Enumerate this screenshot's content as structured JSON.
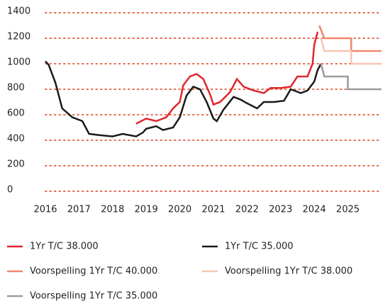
{
  "chart_data": {
    "type": "line",
    "xlim": [
      2016,
      2026
    ],
    "xticks": [
      2016,
      2017,
      2018,
      2019,
      2020,
      2021,
      2022,
      2023,
      2024,
      2025
    ],
    "ylim": [
      0,
      1400
    ],
    "yticks": [
      0,
      200,
      400,
      600,
      800,
      1000,
      1200,
      1400
    ],
    "grid": true,
    "grid_color": "#e8664a",
    "legend": "bottom",
    "series": [
      {
        "name": "1Yr T/C 38.000",
        "color": "#e1262b",
        "x": [
          2018.7,
          2019.0,
          2019.3,
          2019.6,
          2019.8,
          2020.0,
          2020.1,
          2020.3,
          2020.5,
          2020.7,
          2020.9,
          2021.0,
          2021.2,
          2021.5,
          2021.7,
          2021.9,
          2022.2,
          2022.5,
          2022.7,
          2023.0,
          2023.3,
          2023.5,
          2023.8,
          2023.95,
          2024.0,
          2024.1
        ],
        "values": [
          530,
          570,
          550,
          580,
          650,
          700,
          830,
          900,
          920,
          880,
          760,
          680,
          700,
          780,
          880,
          820,
          790,
          770,
          810,
          810,
          820,
          900,
          900,
          1000,
          1150,
          1250
        ]
      },
      {
        "name": "1Yr T/C 35.000",
        "color": "#1a1a1a",
        "x": [
          2016.0,
          2016.1,
          2016.3,
          2016.5,
          2016.8,
          2017.1,
          2017.3,
          2017.6,
          2018.0,
          2018.3,
          2018.7,
          2018.9,
          2019.0,
          2019.3,
          2019.5,
          2019.8,
          2020.0,
          2020.2,
          2020.4,
          2020.6,
          2020.8,
          2021.0,
          2021.1,
          2021.3,
          2021.6,
          2021.8,
          2022.0,
          2022.3,
          2022.5,
          2022.8,
          2023.1,
          2023.3,
          2023.6,
          2023.8,
          2024.0,
          2024.1,
          2024.2
        ],
        "values": [
          1020,
          990,
          850,
          650,
          580,
          550,
          450,
          440,
          430,
          450,
          430,
          460,
          490,
          510,
          480,
          500,
          580,
          750,
          820,
          800,
          700,
          570,
          550,
          640,
          740,
          720,
          690,
          650,
          700,
          700,
          710,
          800,
          770,
          790,
          860,
          950,
          1000
        ]
      },
      {
        "name": "Voorspelling 1Yr T/C 40.000",
        "color": "#f0876a",
        "x": [
          2024.15,
          2024.3,
          2025.1,
          2025.1,
          2026.0
        ],
        "values": [
          1300,
          1200,
          1200,
          1100,
          1100
        ]
      },
      {
        "name": "Voorspelling 1Yr T/C 38.000",
        "color": "#f8c4b4",
        "x": [
          2024.2,
          2024.3,
          2025.1,
          2025.1,
          2026.0
        ],
        "values": [
          1200,
          1100,
          1100,
          1000,
          1000
        ]
      },
      {
        "name": "Voorspelling 1Yr T/C 35.000",
        "color": "#9a9a9a",
        "x": [
          2024.2,
          2024.3,
          2025.0,
          2025.0,
          2026.0
        ],
        "values": [
          1000,
          900,
          900,
          800,
          800
        ]
      }
    ]
  }
}
